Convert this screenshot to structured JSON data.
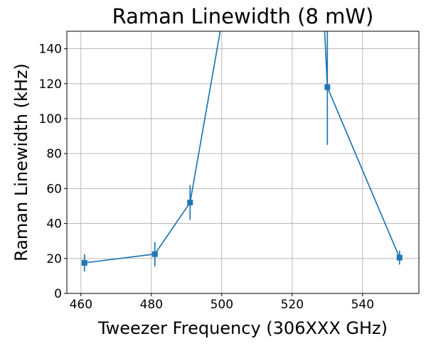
{
  "chart_data": {
    "type": "line",
    "title": "Raman Linewidth (8 mW)",
    "xlabel": "Tweezer Frequency (306XXX GHz)",
    "ylabel": "Raman Linewidth (kHz)",
    "xlim": [
      456,
      556
    ],
    "ylim": [
      0,
      150
    ],
    "xticks": [
      460,
      480,
      500,
      520,
      540
    ],
    "yticks": [
      0,
      20,
      40,
      60,
      80,
      100,
      120,
      140
    ],
    "grid": true,
    "color": "#1f77b4",
    "marker": "square",
    "series": [
      {
        "x": [
          461,
          481,
          491,
          500,
          529,
          530,
          550.5
        ],
        "y": [
          17.5,
          22.5,
          52,
          155,
          160,
          118,
          20.5
        ],
        "yerr": [
          5,
          7,
          10,
          null,
          null,
          33,
          4
        ]
      }
    ]
  }
}
